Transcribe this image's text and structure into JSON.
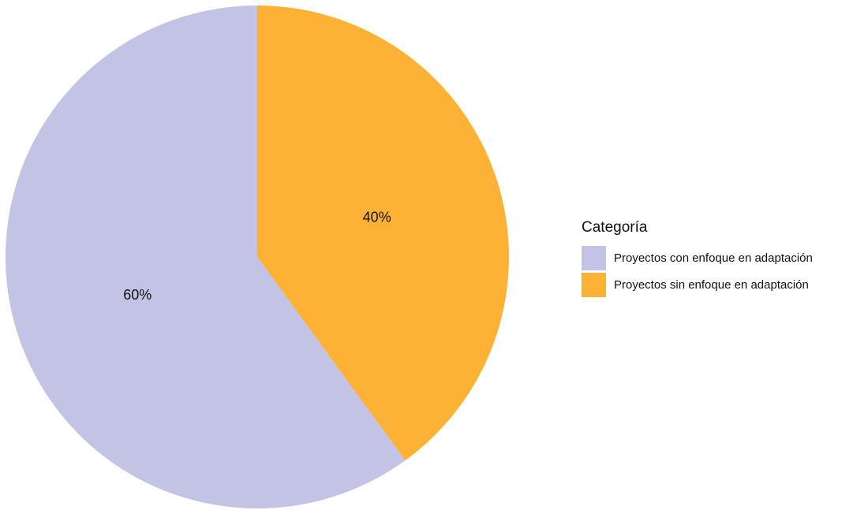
{
  "chart_data": {
    "type": "pie",
    "title": "",
    "legend_title": "Categoría",
    "legend_position": "right",
    "categories": [
      "Proyectos con enfoque en adaptación",
      "Proyectos sin enfoque en adaptación"
    ],
    "values": [
      60,
      40
    ],
    "labels": [
      "60%",
      "40%"
    ],
    "colors": [
      "#c3c3e6",
      "#fdb135"
    ],
    "start": "12 o'clock",
    "direction": "counterclockwise from top for first category"
  }
}
